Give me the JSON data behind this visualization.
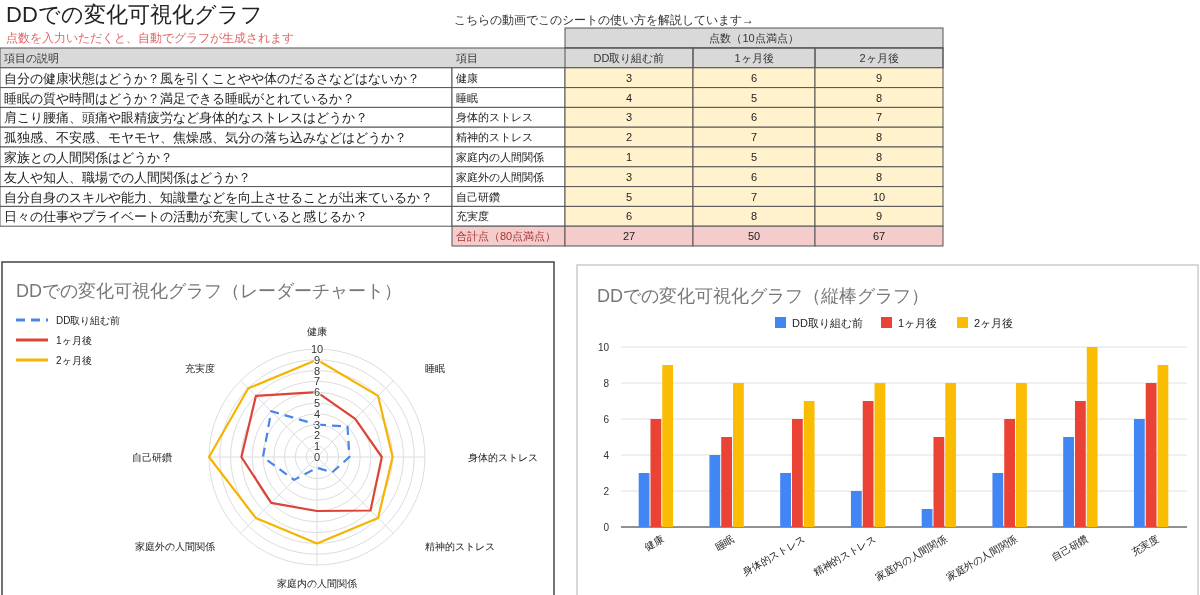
{
  "chart_data": [
    {
      "type": "heatmap",
      "title": "DDでの変化可視化グラフ",
      "subtitle": "点数を入力いただくと、自動でグラフが生成されます",
      "annotations": [
        "こちらの動画でこのシートの使い方を解説しています→"
      ],
      "xlabel": "点数（10点満点）",
      "ylabel": "項目",
      "y2label": "項目の説明",
      "categories": [
        "DD取り組む前",
        "1ヶ月後",
        "2ヶ月後"
      ],
      "y_categories": [
        "健康",
        "睡眠",
        "身体的ストレス",
        "精神的ストレス",
        "家庭内の人間関係",
        "家庭外の人間関係",
        "自己研鑽",
        "充実度",
        "合計点（80点満点）"
      ],
      "y2_categories": [
        "自分の健康状態はどうか？風を引くことやや体のだるさなどはないか？",
        "睡眠の質や時間はどうか？満足できる睡眠がとれているか？",
        "肩こり腰痛、頭痛や眼精疲労など身体的なストレスはどうか？",
        "孤独感、不安感、モヤモヤ、焦燥感、気分の落ち込みなどはどうか？",
        "家族との人間関係はどうか？",
        "友人や知人、職場での人間関係はどうか？",
        "自分自身のスキルや能力、知識量などを向上させることが出来ているか？",
        "日々の仕事やプライベートの活動が充実していると感じるか？",
        null
      ],
      "cells": [
        [
          3,
          6,
          9
        ],
        [
          4,
          5,
          8
        ],
        [
          3,
          6,
          7
        ],
        [
          2,
          7,
          8
        ],
        [
          1,
          5,
          8
        ],
        [
          3,
          6,
          8
        ],
        [
          5,
          7,
          10
        ],
        [
          6,
          8,
          9
        ],
        [
          27,
          50,
          67
        ]
      ],
      "colors": [
        "#fff2cc",
        "#fff2cc",
        "#fff2cc",
        "#fff2cc",
        "#fff2cc",
        "#fff2cc",
        "#fff2cc",
        "#fff2cc",
        "#f4cccc"
      ],
      "data_labels": true
    },
    {
      "type": "radar",
      "title": "DDでの変化可視化グラフ（レーダーチャート）",
      "categories": [
        "健康",
        "睡眠",
        "身体的ストレス",
        "精神的ストレス",
        "家庭内の人間関係",
        "家庭外の人間関係",
        "自己研鑽",
        "充実度"
      ],
      "ylim": [
        0,
        10
      ],
      "yticks": [
        0,
        1,
        2,
        3,
        4,
        5,
        6,
        7,
        8,
        9,
        10
      ],
      "grid": true,
      "legend": "top left",
      "series": [
        {
          "name": "DD取り組む前",
          "color": "#4a86e8",
          "line_style": "dashed",
          "values": [
            3,
            4,
            3,
            2,
            1,
            3,
            5,
            6
          ]
        },
        {
          "name": "1ヶ月後",
          "color": "#db4437",
          "line_style": "solid",
          "values": [
            6,
            5,
            6,
            7,
            5,
            6,
            7,
            8
          ]
        },
        {
          "name": "2ヶ月後",
          "color": "#f4b400",
          "line_style": "solid",
          "values": [
            9,
            8,
            7,
            8,
            8,
            8,
            10,
            9
          ]
        }
      ]
    },
    {
      "type": "bar",
      "title": "DDでの変化可視化グラフ（縦棒グラフ）",
      "categories": [
        "健康",
        "睡眠",
        "身体的ストレス",
        "精神的ストレス",
        "家庭内の人間関係",
        "家庭外の人間関係",
        "自己研鑽",
        "充実度"
      ],
      "ylim": [
        0,
        10
      ],
      "yticks": [
        0,
        2,
        4,
        6,
        8,
        10
      ],
      "grid": "y",
      "legend": "top",
      "series": [
        {
          "name": "DD取り組む前",
          "color": "#4285f4",
          "values": [
            3,
            4,
            3,
            2,
            1,
            3,
            5,
            6
          ]
        },
        {
          "name": "1ヶ月後",
          "color": "#ea4335",
          "values": [
            6,
            5,
            6,
            7,
            5,
            6,
            7,
            8
          ]
        },
        {
          "name": "2ヶ月後",
          "color": "#fbbc04",
          "values": [
            9,
            8,
            7,
            8,
            8,
            8,
            10,
            9
          ]
        }
      ]
    }
  ]
}
